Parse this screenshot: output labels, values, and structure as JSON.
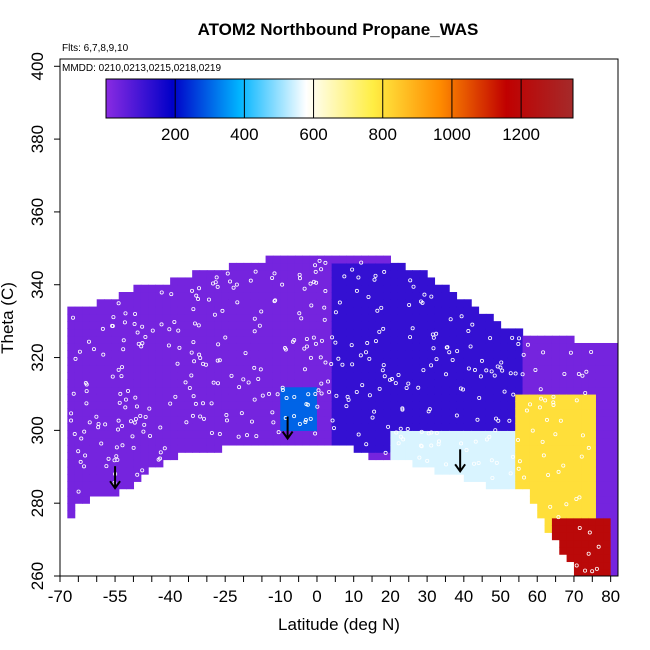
{
  "chart_data": {
    "type": "heatmap",
    "title": "ATOM2 Northbound Propane_WAS",
    "flights_note": "Flts: 6,7,8,9,10",
    "dates_note": "MMDD: 0210,0213,0215,0218,0219",
    "xlabel": "Latitude (deg N)",
    "ylabel": "Theta (C)",
    "xlim": [
      -70,
      82
    ],
    "ylim": [
      260,
      402
    ],
    "x_tick_labels": [
      "-70",
      "-55",
      "-40",
      "-25",
      "-10",
      "0",
      "10",
      "20",
      "30",
      "40",
      "50",
      "60",
      "70",
      "80"
    ],
    "y_tick_labels": [
      "260",
      "280",
      "300",
      "320",
      "340",
      "360",
      "380",
      "400"
    ],
    "colorbar": {
      "range": [
        0,
        1350
      ],
      "tick_labels": [
        "200",
        "400",
        "600",
        "800",
        "1000",
        "1200"
      ],
      "colors": [
        "#8a2be2",
        "#0000c8",
        "#00b4ff",
        "#ffffff",
        "#ffee44",
        "#ff8c00",
        "#c00000",
        "#a52a2a"
      ]
    },
    "arrows_latitude": [
      -55,
      -8,
      39
    ],
    "field_top_boundary": [
      [
        -67,
        333
      ],
      [
        -60,
        334
      ],
      [
        -50,
        338
      ],
      [
        -40,
        340
      ],
      [
        -30,
        343
      ],
      [
        -20,
        345
      ],
      [
        -10,
        347
      ],
      [
        0,
        348
      ],
      [
        10,
        348
      ],
      [
        20,
        346
      ],
      [
        30,
        342
      ],
      [
        40,
        335
      ],
      [
        50,
        328
      ],
      [
        60,
        325
      ],
      [
        70,
        324
      ],
      [
        80,
        323
      ]
    ],
    "field_bottom_boundary": [
      [
        -68,
        276
      ],
      [
        -65,
        281
      ],
      [
        -57,
        283
      ],
      [
        -50,
        285
      ],
      [
        -45,
        290
      ],
      [
        -35,
        295
      ],
      [
        -25,
        296
      ],
      [
        -10,
        297
      ],
      [
        0,
        298
      ],
      [
        10,
        296
      ],
      [
        15,
        293
      ],
      [
        25,
        292
      ],
      [
        35,
        289
      ],
      [
        40,
        288
      ],
      [
        50,
        284
      ],
      [
        57,
        285
      ],
      [
        65,
        270
      ],
      [
        72,
        260
      ],
      [
        80,
        260
      ]
    ],
    "region_values": [
      {
        "lat_range": [
          -70,
          5
        ],
        "theta_range": [
          280,
          348
        ],
        "value": 30
      },
      {
        "lat_range": [
          -10,
          0
        ],
        "theta_range": [
          300,
          312
        ],
        "value": 300
      },
      {
        "lat_range": [
          5,
          55
        ],
        "theta_range": [
          295,
          345
        ],
        "value": 120
      },
      {
        "lat_range": [
          20,
          60
        ],
        "theta_range": [
          285,
          300
        ],
        "value": 550
      },
      {
        "lat_range": [
          55,
          75
        ],
        "theta_range": [
          270,
          310
        ],
        "value": 800
      },
      {
        "lat_range": [
          65,
          80
        ],
        "theta_range": [
          260,
          275
        ],
        "value": 1200
      }
    ]
  }
}
